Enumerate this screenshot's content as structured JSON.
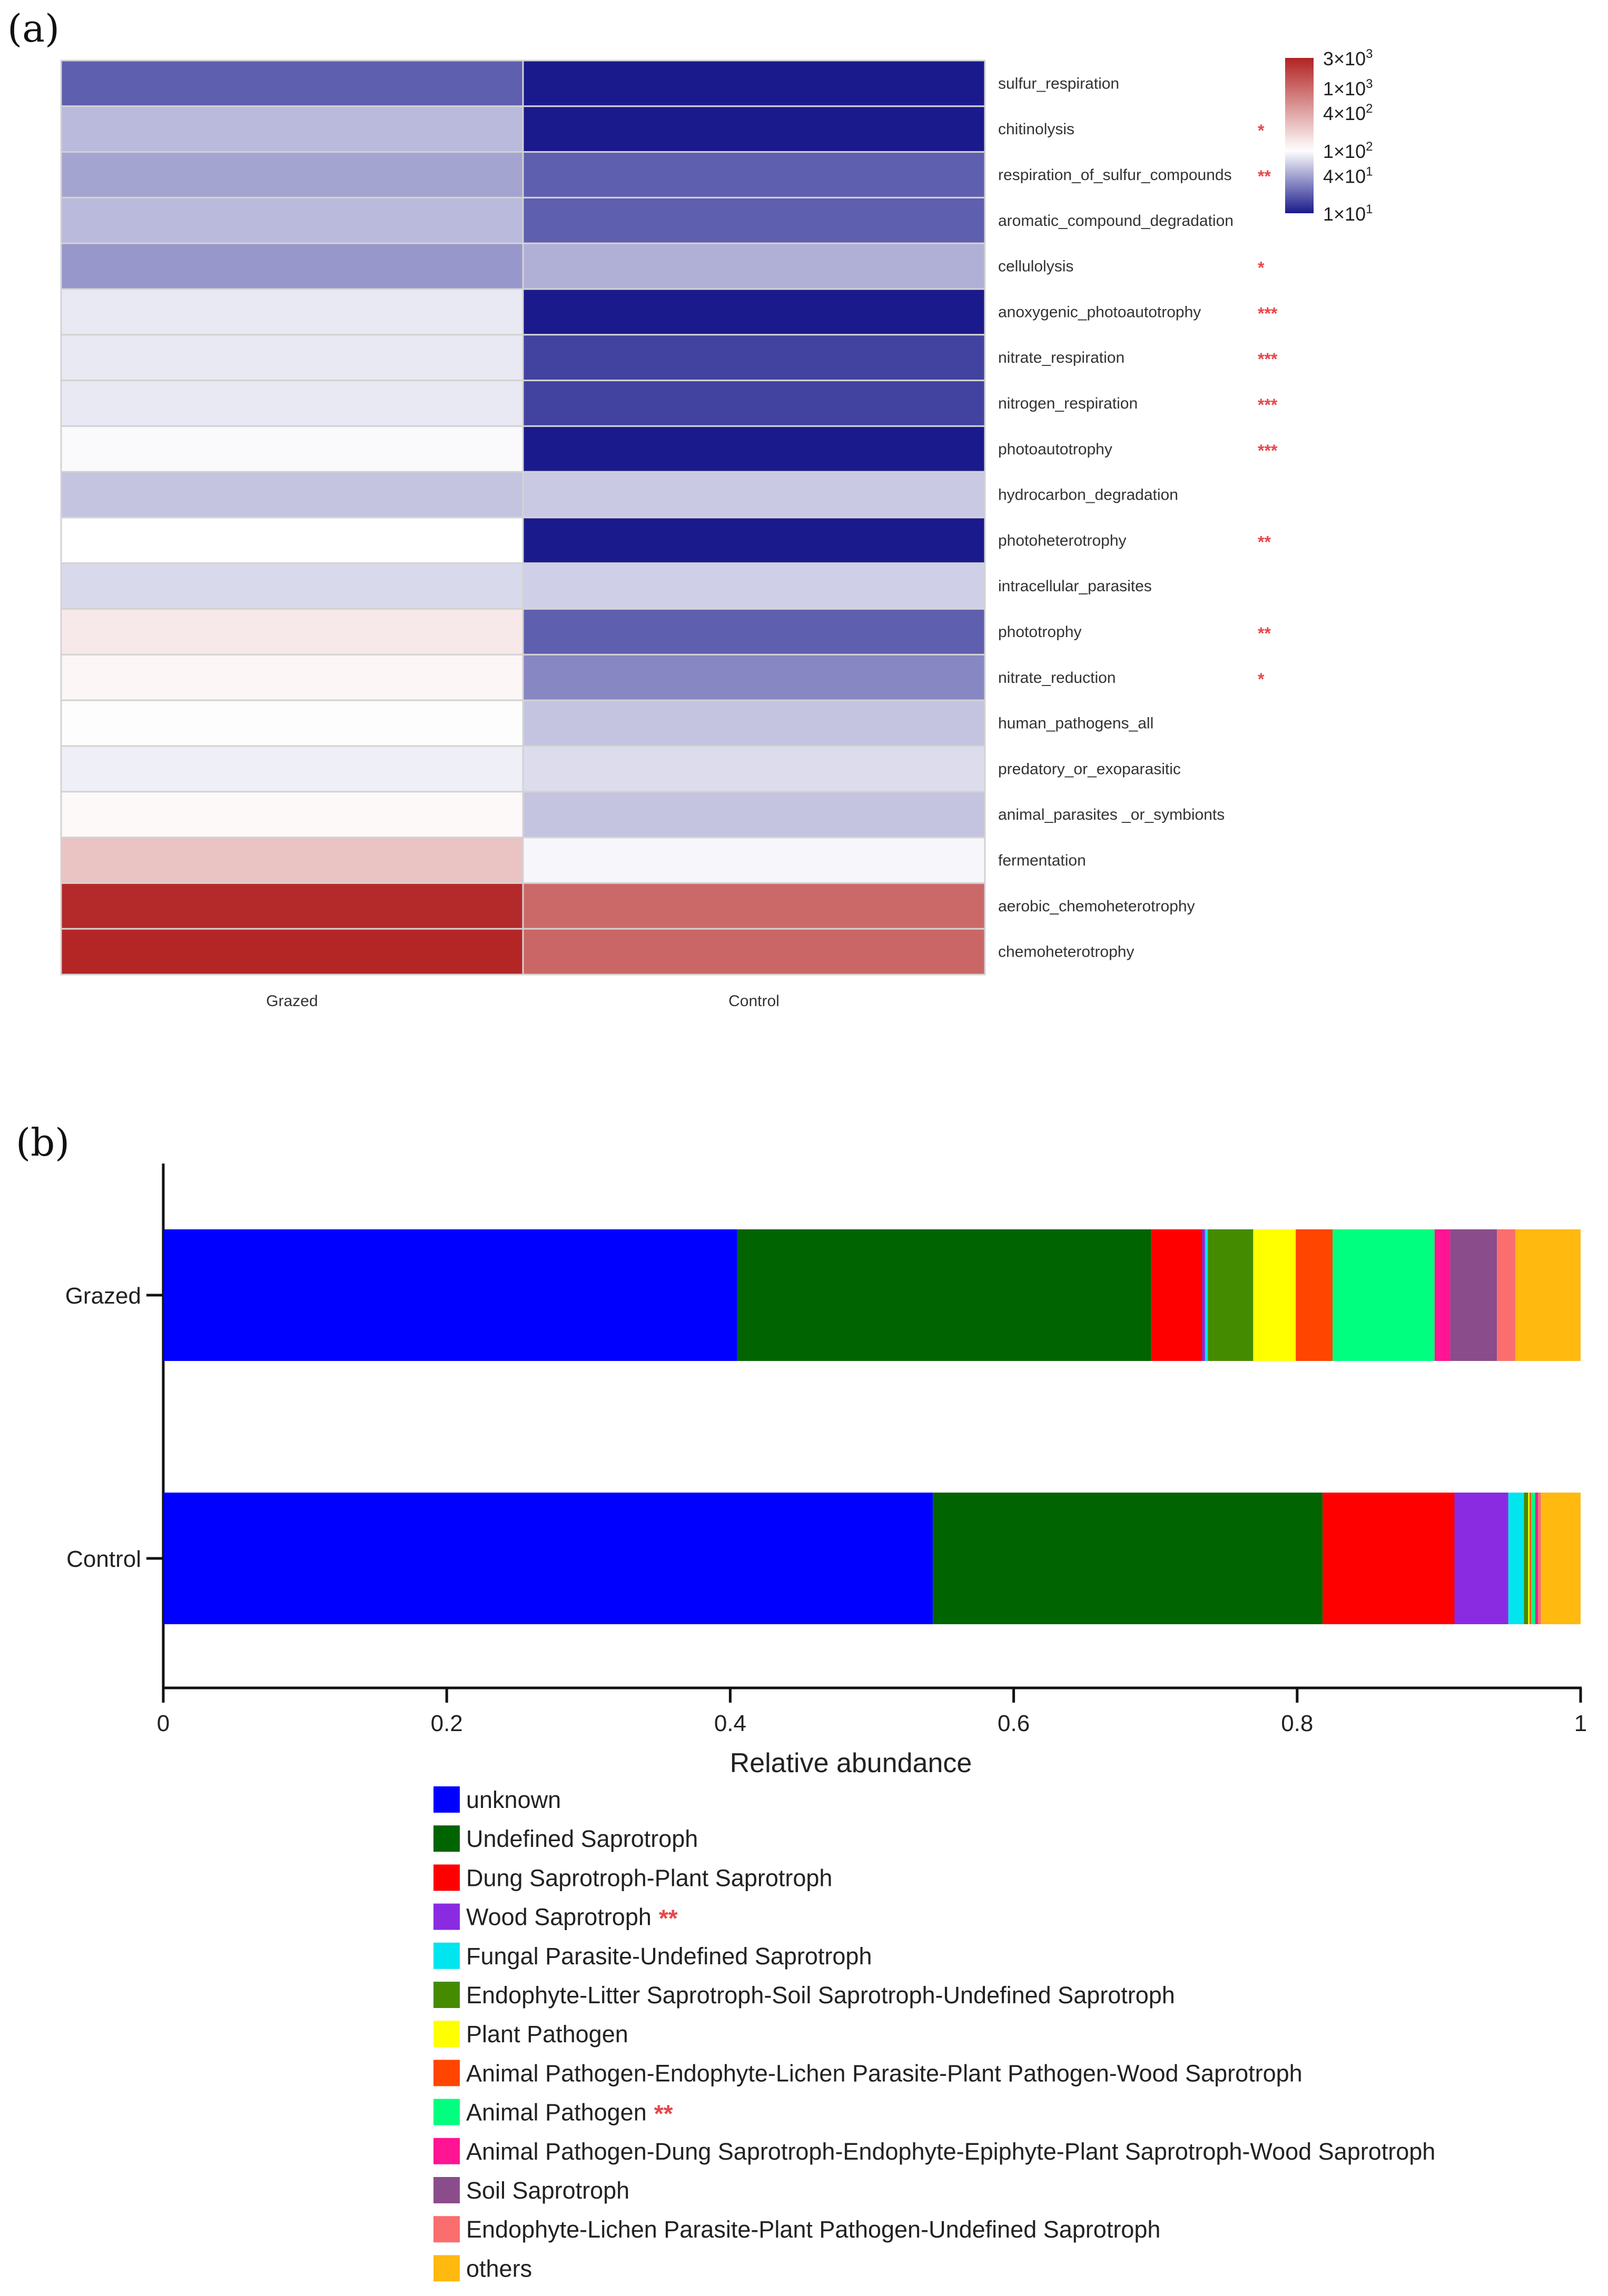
{
  "panels": {
    "a": "(a)",
    "b": "(b)"
  },
  "chart_data": [
    {
      "type": "heatmap",
      "title": "",
      "columns": [
        "Grazed",
        "Control"
      ],
      "rows": [
        {
          "label": "sulfur_respiration",
          "sig": "",
          "values": [
            20,
            1.5
          ]
        },
        {
          "label": "chitinolysis",
          "sig": "*",
          "values": [
            50,
            2
          ]
        },
        {
          "label": "respiration_of_sulfur_compounds",
          "sig": "**",
          "values": [
            40,
            20
          ]
        },
        {
          "label": "aromatic_compound_degradation",
          "sig": "",
          "values": [
            50,
            20
          ]
        },
        {
          "label": "cellulolysis",
          "sig": "*",
          "values": [
            35,
            45
          ]
        },
        {
          "label": "anoxygenic_photoautotrophy",
          "sig": "***",
          "values": [
            80,
            1
          ]
        },
        {
          "label": "nitrate_respiration",
          "sig": "***",
          "values": [
            80,
            15
          ]
        },
        {
          "label": "nitrogen_respiration",
          "sig": "***",
          "values": [
            80,
            15
          ]
        },
        {
          "label": "photoautotrophy",
          "sig": "***",
          "values": [
            95,
            2
          ]
        },
        {
          "label": "hydrocarbon_degradation",
          "sig": "",
          "values": [
            55,
            58
          ]
        },
        {
          "label": "photoheterotrophy",
          "sig": "**",
          "values": [
            100,
            9
          ]
        },
        {
          "label": "intracellular_parasites",
          "sig": "",
          "values": [
            68,
            62
          ]
        },
        {
          "label": "phototrophy",
          "sig": "**",
          "values": [
            140,
            20
          ]
        },
        {
          "label": "nitrate_reduction",
          "sig": "*",
          "values": [
            115,
            30
          ]
        },
        {
          "label": "human_pathogens_all",
          "sig": "",
          "values": [
            98,
            55
          ]
        },
        {
          "label": "predatory_or_exoparasitic",
          "sig": "",
          "values": [
            85,
            70
          ]
        },
        {
          "label": "animal_parasites _or_symbionts",
          "sig": "",
          "values": [
            110,
            55
          ]
        },
        {
          "label": "fermentation",
          "sig": "",
          "values": [
            250,
            92
          ]
        },
        {
          "label": "aerobic_chemoheterotrophy",
          "sig": "",
          "values": [
            2700,
            1000
          ]
        },
        {
          "label": "chemoheterotrophy",
          "sig": "",
          "values": [
            2800,
            1050
          ]
        }
      ],
      "scale": {
        "type": "log",
        "min": 10,
        "max": 3000,
        "mid": 100,
        "color_low": "#1a1a8c",
        "color_mid": "#ffffff",
        "color_high": "#b22222",
        "ticks": [
          {
            "value": 3000,
            "mant": "3×10",
            "exp": "3"
          },
          {
            "value": 1000,
            "mant": "1×10",
            "exp": "3"
          },
          {
            "value": 400,
            "mant": "4×10",
            "exp": "2"
          },
          {
            "value": 100,
            "mant": "1×10",
            "exp": "2"
          },
          {
            "value": 40,
            "mant": "4×10",
            "exp": "1"
          },
          {
            "value": 10,
            "mant": "1×10",
            "exp": "1"
          }
        ]
      },
      "sig_color": "#e8474a"
    },
    {
      "type": "bar",
      "orientation": "horizontal",
      "stacked": true,
      "xlabel": "Relative abundance",
      "ylabel": "",
      "xlim": [
        0,
        1
      ],
      "xticks": [
        {
          "value": 0,
          "label": "0"
        },
        {
          "value": 0.2,
          "label": "0.2"
        },
        {
          "value": 0.4,
          "label": "0.4"
        },
        {
          "value": 0.6,
          "label": "0.6"
        },
        {
          "value": 0.8,
          "label": "0.8"
        },
        {
          "value": 1,
          "label": "1"
        }
      ],
      "categories": [
        "Grazed",
        "Control"
      ],
      "series": [
        {
          "name": "unknown",
          "color": "#0000ff",
          "sig": "",
          "values": [
            0.405,
            0.543
          ]
        },
        {
          "name": "Undefined Saprotroph",
          "color": "#006400",
          "sig": "",
          "values": [
            0.292,
            0.275
          ]
        },
        {
          "name": "Dung Saprotroph-Plant Saprotroph",
          "color": "#ff0000",
          "sig": "",
          "values": [
            0.036,
            0.093
          ]
        },
        {
          "name": "Wood Saprotroph",
          "color": "#8a2be2",
          "sig": "**",
          "values": [
            0.002,
            0.038
          ]
        },
        {
          "name": "Fungal Parasite-Undefined Saprotroph",
          "color": "#00e5ee",
          "sig": "",
          "values": [
            0.002,
            0.011
          ]
        },
        {
          "name": "Endophyte-Litter Saprotroph-Soil Saprotroph-Undefined Saprotroph",
          "color": "#458b00",
          "sig": "",
          "values": [
            0.032,
            0.003
          ]
        },
        {
          "name": "Plant Pathogen",
          "color": "#ffff00",
          "sig": "",
          "values": [
            0.03,
            0.001
          ]
        },
        {
          "name": "Animal Pathogen-Endophyte-Lichen Parasite-Plant Pathogen-Wood Saprotroph",
          "color": "#ff4500",
          "sig": "",
          "values": [
            0.026,
            0.001
          ]
        },
        {
          "name": "Animal Pathogen",
          "color": "#00ff7f",
          "sig": "**",
          "values": [
            0.072,
            0.003
          ]
        },
        {
          "name": "Animal Pathogen-Dung Saprotroph-Endophyte-Epiphyte-Plant Saprotroph-Wood Saprotroph",
          "color": "#ff1493",
          "sig": "",
          "values": [
            0.011,
            0.001
          ]
        },
        {
          "name": "Soil Saprotroph",
          "color": "#8b4c8b",
          "sig": "",
          "values": [
            0.033,
            0.001
          ]
        },
        {
          "name": "Endophyte-Lichen Parasite-Plant Pathogen-Undefined Saprotroph",
          "color": "#fa6e6e",
          "sig": "",
          "values": [
            0.013,
            0.002
          ]
        },
        {
          "name": "others",
          "color": "#ffb90f",
          "sig": "",
          "values": [
            0.046,
            0.028
          ]
        }
      ],
      "legend_position": "bottom",
      "sig_color": "#e8474a"
    }
  ]
}
